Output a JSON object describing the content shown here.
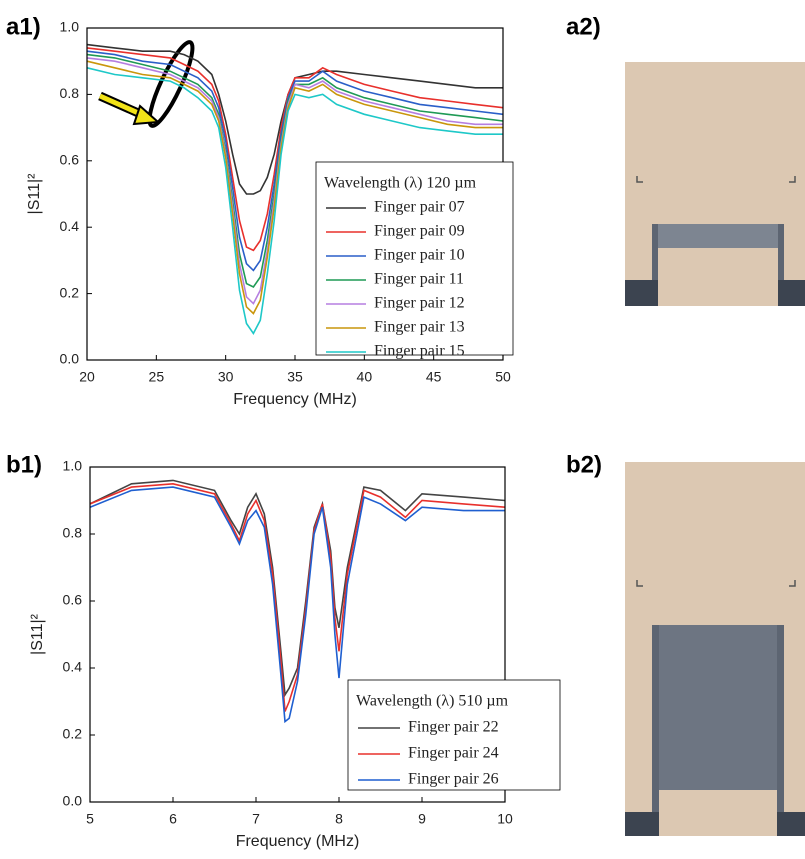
{
  "chart_data": [
    {
      "type": "line",
      "panel_label": "a1)",
      "x_label": "Frequency (MHz)",
      "y_label": "|S11|²",
      "legend_title": "Wavelength (λ) 120 µm",
      "x": [
        20,
        22,
        24,
        26,
        27,
        28,
        29,
        29.5,
        30,
        30.5,
        31,
        31.5,
        32,
        32.5,
        33,
        33.5,
        34,
        34.5,
        35,
        36,
        37,
        38,
        40,
        42,
        44,
        46,
        48,
        50
      ],
      "xlim": [
        20,
        50
      ],
      "xticks": [
        20,
        25,
        30,
        35,
        40,
        45,
        50
      ],
      "ylim": [
        0,
        1
      ],
      "yticks": [
        {
          "value": 0,
          "label": "0.0"
        },
        0.2,
        0.4,
        0.6,
        0.8,
        {
          "value": 1,
          "label": "1.0"
        }
      ],
      "series": [
        {
          "name": "Finger pair 07",
          "color": "#333333",
          "values": [
            0.95,
            0.94,
            0.93,
            0.93,
            0.92,
            0.9,
            0.86,
            0.8,
            0.72,
            0.62,
            0.53,
            0.5,
            0.5,
            0.51,
            0.55,
            0.62,
            0.72,
            0.8,
            0.85,
            0.86,
            0.87,
            0.87,
            0.86,
            0.85,
            0.84,
            0.83,
            0.82,
            0.82
          ]
        },
        {
          "name": "Finger pair 09",
          "color": "#e8302c",
          "values": [
            0.94,
            0.93,
            0.92,
            0.91,
            0.89,
            0.87,
            0.83,
            0.78,
            0.68,
            0.55,
            0.42,
            0.34,
            0.33,
            0.36,
            0.44,
            0.56,
            0.7,
            0.8,
            0.85,
            0.85,
            0.88,
            0.86,
            0.83,
            0.81,
            0.79,
            0.78,
            0.77,
            0.76
          ]
        },
        {
          "name": "Finger pair 10",
          "color": "#2a5fc8",
          "values": [
            0.93,
            0.92,
            0.9,
            0.89,
            0.87,
            0.85,
            0.81,
            0.76,
            0.66,
            0.52,
            0.37,
            0.29,
            0.27,
            0.3,
            0.4,
            0.53,
            0.68,
            0.79,
            0.84,
            0.84,
            0.87,
            0.84,
            0.81,
            0.79,
            0.77,
            0.76,
            0.75,
            0.74
          ]
        },
        {
          "name": "Finger pair 11",
          "color": "#1f9a55",
          "values": [
            0.92,
            0.91,
            0.89,
            0.87,
            0.85,
            0.83,
            0.79,
            0.74,
            0.63,
            0.48,
            0.32,
            0.23,
            0.22,
            0.25,
            0.36,
            0.5,
            0.66,
            0.78,
            0.83,
            0.83,
            0.85,
            0.82,
            0.79,
            0.77,
            0.75,
            0.74,
            0.73,
            0.72
          ]
        },
        {
          "name": "Finger pair 12",
          "color": "#b57ee0",
          "values": [
            0.91,
            0.9,
            0.88,
            0.86,
            0.84,
            0.82,
            0.78,
            0.73,
            0.62,
            0.46,
            0.29,
            0.19,
            0.17,
            0.21,
            0.33,
            0.48,
            0.65,
            0.77,
            0.83,
            0.82,
            0.84,
            0.81,
            0.78,
            0.76,
            0.74,
            0.72,
            0.71,
            0.71
          ]
        },
        {
          "name": "Finger pair 13",
          "color": "#c9960c",
          "values": [
            0.9,
            0.88,
            0.86,
            0.85,
            0.83,
            0.81,
            0.77,
            0.72,
            0.61,
            0.44,
            0.26,
            0.16,
            0.14,
            0.18,
            0.31,
            0.46,
            0.64,
            0.76,
            0.82,
            0.81,
            0.83,
            0.8,
            0.77,
            0.75,
            0.73,
            0.71,
            0.7,
            0.7
          ]
        },
        {
          "name": "Finger pair 15",
          "color": "#1ec8c8",
          "values": [
            0.88,
            0.86,
            0.85,
            0.84,
            0.82,
            0.79,
            0.75,
            0.7,
            0.58,
            0.4,
            0.21,
            0.11,
            0.08,
            0.12,
            0.26,
            0.42,
            0.62,
            0.75,
            0.8,
            0.79,
            0.8,
            0.77,
            0.74,
            0.72,
            0.7,
            0.69,
            0.68,
            0.68
          ]
        }
      ]
    },
    {
      "type": "line",
      "panel_label": "b1)",
      "x_label": "Frequency (MHz)",
      "y_label": "|S11|²",
      "legend_title": "Wavelength (λ) 510 µm",
      "x": [
        5,
        5.5,
        6,
        6.5,
        6.7,
        6.8,
        6.9,
        7,
        7.1,
        7.2,
        7.3,
        7.35,
        7.4,
        7.5,
        7.6,
        7.7,
        7.8,
        7.9,
        7.95,
        8,
        8.1,
        8.3,
        8.5,
        8.8,
        9,
        9.5,
        10
      ],
      "xlim": [
        5,
        10
      ],
      "xticks": [
        5,
        6,
        7,
        8,
        9,
        10
      ],
      "ylim": [
        0,
        1
      ],
      "yticks": [
        {
          "value": 0,
          "label": "0.0"
        },
        0.2,
        0.4,
        0.6,
        0.8,
        {
          "value": 1,
          "label": "1.0"
        }
      ],
      "series": [
        {
          "name": "Finger pair 22",
          "color": "#444444",
          "values": [
            0.89,
            0.95,
            0.96,
            0.93,
            0.84,
            0.8,
            0.88,
            0.92,
            0.86,
            0.7,
            0.45,
            0.32,
            0.34,
            0.4,
            0.6,
            0.82,
            0.89,
            0.75,
            0.58,
            0.52,
            0.7,
            0.94,
            0.93,
            0.87,
            0.92,
            0.91,
            0.9
          ]
        },
        {
          "name": "Finger pair 24",
          "color": "#e8302c",
          "values": [
            0.89,
            0.94,
            0.95,
            0.92,
            0.83,
            0.78,
            0.86,
            0.9,
            0.84,
            0.68,
            0.42,
            0.27,
            0.3,
            0.38,
            0.58,
            0.81,
            0.89,
            0.73,
            0.55,
            0.45,
            0.68,
            0.93,
            0.91,
            0.85,
            0.9,
            0.89,
            0.88
          ]
        },
        {
          "name": "Finger pair 26",
          "color": "#1f5fd0",
          "values": [
            0.88,
            0.93,
            0.94,
            0.91,
            0.82,
            0.77,
            0.84,
            0.87,
            0.82,
            0.65,
            0.38,
            0.24,
            0.25,
            0.36,
            0.56,
            0.8,
            0.88,
            0.7,
            0.5,
            0.37,
            0.65,
            0.91,
            0.89,
            0.84,
            0.88,
            0.87,
            0.87
          ]
        }
      ]
    }
  ],
  "image_panels": [
    {
      "label": "a2)"
    },
    {
      "label": "b2)"
    }
  ]
}
